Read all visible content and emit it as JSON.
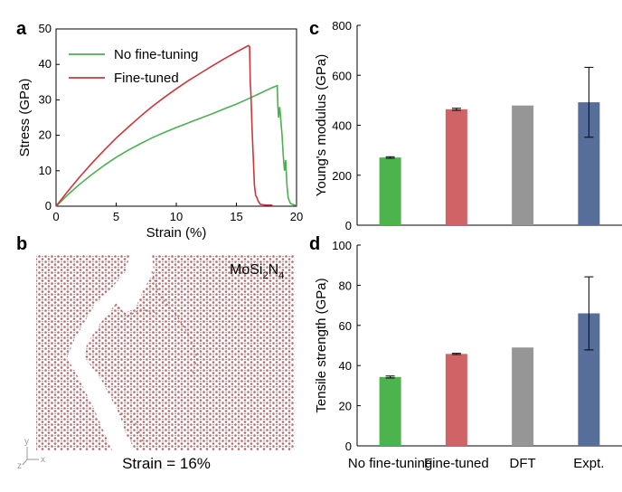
{
  "panels": {
    "a": "a",
    "b": "b",
    "c": "c",
    "d": "d"
  },
  "colors": {
    "no_fine_tuning": "#4caf50",
    "fine_tuned": "#c8373f",
    "bar_green": "#4db34c",
    "bar_red": "#cf6365",
    "bar_gray": "#969696",
    "bar_blue": "#566e99",
    "atoms": "#b46a6a"
  },
  "image_panel": {
    "material_base": "MoSi",
    "material_sub1": "2",
    "material_mid": "N",
    "material_sub2": "4",
    "strain_caption": "Strain = 16%",
    "axis_y": "y",
    "axis_z": "z",
    "axis_x": "x"
  },
  "chart_data": [
    {
      "id": "a",
      "type": "line",
      "xlabel": "Strain (%)",
      "ylabel": "Stress (GPa)",
      "xlim": [
        0,
        20
      ],
      "ylim": [
        0,
        50
      ],
      "xticks": [
        0,
        5,
        10,
        15,
        20
      ],
      "yticks": [
        0,
        10,
        20,
        30,
        40,
        50
      ],
      "legend_position": "top-left",
      "series": [
        {
          "name": "No fine-tuning",
          "color": "#4caf50",
          "x": [
            0,
            1,
            2,
            3,
            4,
            5,
            6,
            7,
            8,
            9,
            10,
            11,
            12,
            13,
            14,
            15,
            16,
            17,
            18,
            18.4,
            18.45,
            18.5,
            18.6,
            18.7,
            18.8,
            18.9,
            19.0,
            19.1,
            19.2,
            19.3,
            19.4,
            19.5,
            19.6,
            19.7,
            19.8,
            20.0
          ],
          "y": [
            0,
            3.3,
            6.3,
            9.0,
            11.5,
            13.8,
            15.8,
            17.6,
            19.3,
            20.8,
            22.2,
            23.5,
            24.8,
            26.1,
            27.5,
            28.8,
            30.3,
            31.9,
            33.5,
            34.0,
            28.0,
            25.0,
            28.0,
            24.0,
            20.0,
            14.0,
            10.0,
            13.0,
            6.0,
            2.5,
            1.5,
            0.8,
            0.6,
            0.5,
            0.3,
            0.3
          ]
        },
        {
          "name": "Fine-tuned",
          "color": "#c8373f",
          "x": [
            0,
            1,
            2,
            3,
            4,
            5,
            6,
            7,
            8,
            9,
            10,
            11,
            12,
            13,
            14,
            15,
            16,
            16.1,
            16.15,
            16.2,
            16.3,
            16.4,
            16.5,
            16.6,
            16.7,
            16.8,
            17.0,
            17.5,
            18.0
          ],
          "y": [
            0,
            4.3,
            8.4,
            12.2,
            15.8,
            19.2,
            22.3,
            25.3,
            28.1,
            30.7,
            33.1,
            35.4,
            37.5,
            39.6,
            41.6,
            43.5,
            45.3,
            45.0,
            35.0,
            32.0,
            22.0,
            14.0,
            6.0,
            3.0,
            2.5,
            1.5,
            0.5,
            0.3,
            0.3
          ]
        }
      ]
    },
    {
      "id": "c",
      "type": "bar",
      "ylabel": "Young's modulus (GPa)",
      "ylim": [
        0,
        800
      ],
      "yticks": [
        0,
        200,
        400,
        600,
        800
      ],
      "categories": [
        "No fine-tuning",
        "Fine-tuned",
        "DFT",
        "Expt."
      ],
      "values": [
        271,
        464,
        479,
        492
      ],
      "errors": [
        3,
        4,
        0,
        140
      ],
      "bar_colors": [
        "#4db34c",
        "#cf6365",
        "#969696",
        "#566e99"
      ]
    },
    {
      "id": "d",
      "type": "bar",
      "ylabel": "Tensile strength (GPa)",
      "ylim": [
        0,
        100
      ],
      "yticks": [
        0,
        20,
        40,
        60,
        80,
        100
      ],
      "categories": [
        "No fine-tuning",
        "Fine-tuned",
        "DFT",
        "Expt."
      ],
      "values": [
        34.3,
        45.8,
        49.0,
        66.0
      ],
      "errors": [
        0.5,
        0.3,
        0,
        18.2
      ],
      "bar_colors": [
        "#4db34c",
        "#cf6365",
        "#969696",
        "#566e99"
      ]
    }
  ]
}
